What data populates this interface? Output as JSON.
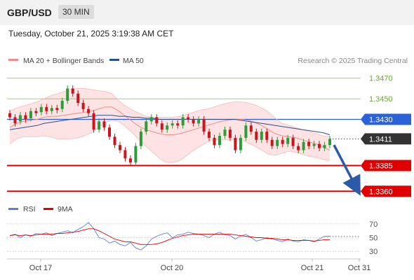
{
  "header": {
    "symbol": "GBP/USD",
    "timeframe": "30 MIN"
  },
  "timestamp": "Tuesday, October 21, 2025 3:19:38 AM CET",
  "legend": [
    {
      "name": "MA 20 + Bollinger Bands",
      "color": "#f28b8b"
    },
    {
      "name": "MA 50",
      "color": "#2b4f8f"
    }
  ],
  "credit": "Research © 2025 Trading Central",
  "rsi_legend": [
    {
      "name": "RSI",
      "color": "#5b7fd6"
    },
    {
      "name": "9MA",
      "color": "#e00000"
    }
  ],
  "chart_data": [
    {
      "type": "candlestick",
      "ylim": [
        1.3352,
        1.3478
      ],
      "x_ticks": [
        "Oct 17",
        "Oct 20",
        "Oct 21",
        "Oct 31"
      ],
      "levels": [
        {
          "value": 1.347,
          "label": "1.3470",
          "kind": "target",
          "color": "#6aa832"
        },
        {
          "value": 1.345,
          "label": "1.3450",
          "kind": "target",
          "color": "#6aa832"
        },
        {
          "value": 1.343,
          "label": "1.3430",
          "kind": "pivot",
          "color": "#2a62d9"
        },
        {
          "value": 1.3411,
          "label": "1.3411",
          "kind": "last",
          "color": "#333333"
        },
        {
          "value": 1.3385,
          "label": "1.3385",
          "kind": "support",
          "color": "#e00000"
        },
        {
          "value": 1.336,
          "label": "1.3360",
          "kind": "support",
          "color": "#e00000"
        }
      ],
      "forecast": {
        "from": 1.3405,
        "to": 1.3362,
        "color": "#2b5aa8"
      },
      "ma20": [
        1.3422,
        1.3426,
        1.3428,
        1.3429,
        1.343,
        1.3432,
        1.3433,
        1.3433,
        1.3434,
        1.3435,
        1.3436,
        1.3437,
        1.3438,
        1.344,
        1.3442,
        1.3442,
        1.3438,
        1.3433,
        1.3428,
        1.3423,
        1.342,
        1.3418,
        1.3416,
        1.3415,
        1.3415,
        1.3416,
        1.3418,
        1.342,
        1.3422,
        1.3424,
        1.3426,
        1.3428,
        1.3429,
        1.343,
        1.343,
        1.3429,
        1.3427,
        1.3424,
        1.342,
        1.3416,
        1.3414,
        1.3413,
        1.3412,
        1.341,
        1.3408,
        1.3406,
        1.3403,
        1.34
      ],
      "bb_upper": [
        1.3438,
        1.3441,
        1.3443,
        1.3445,
        1.3447,
        1.345,
        1.3453,
        1.3455,
        1.3457,
        1.3459,
        1.346,
        1.346,
        1.3459,
        1.3458,
        1.3457,
        1.3455,
        1.3448,
        1.3443,
        1.3439,
        1.3436,
        1.3433,
        1.3432,
        1.3432,
        1.3432,
        1.3432,
        1.3433,
        1.3435,
        1.3437,
        1.3439,
        1.344,
        1.3442,
        1.3444,
        1.3446,
        1.3447,
        1.3447,
        1.3446,
        1.3444,
        1.3441,
        1.3437,
        1.3431,
        1.3426,
        1.3424,
        1.3422,
        1.342,
        1.3418,
        1.3416,
        1.3414,
        1.3413
      ],
      "bb_lower": [
        1.3406,
        1.3411,
        1.3413,
        1.3413,
        1.3413,
        1.3414,
        1.3413,
        1.3411,
        1.3411,
        1.3411,
        1.3412,
        1.3414,
        1.3417,
        1.3422,
        1.3427,
        1.3429,
        1.3428,
        1.3423,
        1.3417,
        1.341,
        1.3404,
        1.3398,
        1.3392,
        1.3388,
        1.3388,
        1.339,
        1.3395,
        1.34,
        1.3404,
        1.3408,
        1.341,
        1.341,
        1.341,
        1.341,
        1.341,
        1.3407,
        1.3404,
        1.34,
        1.3396,
        1.3395,
        1.3397,
        1.3399,
        1.3398,
        1.3396,
        1.3394,
        1.3393,
        1.3391,
        1.339
      ],
      "ma50": [
        1.342,
        1.3421,
        1.3422,
        1.3423,
        1.3424,
        1.3426,
        1.3427,
        1.3428,
        1.3429,
        1.343,
        1.3431,
        1.3432,
        1.3433,
        1.3434,
        1.3434,
        1.3434,
        1.3433,
        1.3433,
        1.3432,
        1.3432,
        1.3431,
        1.3431,
        1.343,
        1.343,
        1.343,
        1.343,
        1.343,
        1.343,
        1.343,
        1.343,
        1.343,
        1.343,
        1.343,
        1.343,
        1.3429,
        1.3428,
        1.3427,
        1.3426,
        1.3425,
        1.3424,
        1.3423,
        1.3422,
        1.3421,
        1.342,
        1.3419,
        1.3418,
        1.3417,
        1.3415
      ],
      "candles": [
        [
          1.3436,
          1.3432
        ],
        [
          1.3432,
          1.3426
        ],
        [
          1.3428,
          1.3434
        ],
        [
          1.3434,
          1.343
        ],
        [
          1.3431,
          1.3438
        ],
        [
          1.3438,
          1.3436
        ],
        [
          1.3437,
          1.3442
        ],
        [
          1.3442,
          1.3438
        ],
        [
          1.3438,
          1.3441
        ],
        [
          1.3441,
          1.3439
        ],
        [
          1.344,
          1.3448
        ],
        [
          1.3448,
          1.346
        ],
        [
          1.346,
          1.3455
        ],
        [
          1.3455,
          1.3446
        ],
        [
          1.3446,
          1.344
        ],
        [
          1.344,
          1.3436
        ],
        [
          1.3436,
          1.342
        ],
        [
          1.342,
          1.3428
        ],
        [
          1.3428,
          1.3422
        ],
        [
          1.3422,
          1.3413
        ],
        [
          1.3413,
          1.3405
        ],
        [
          1.3405,
          1.34
        ],
        [
          1.34,
          1.3392
        ],
        [
          1.3392,
          1.3388
        ],
        [
          1.3388,
          1.3404
        ],
        [
          1.3404,
          1.3418
        ],
        [
          1.3418,
          1.3428
        ],
        [
          1.3428,
          1.3432
        ],
        [
          1.3432,
          1.3426
        ],
        [
          1.3426,
          1.342
        ],
        [
          1.342,
          1.3424
        ],
        [
          1.3424,
          1.3426
        ],
        [
          1.3426,
          1.3424
        ],
        [
          1.3424,
          1.3432
        ],
        [
          1.3432,
          1.343
        ],
        [
          1.343,
          1.3426
        ],
        [
          1.3426,
          1.343
        ],
        [
          1.343,
          1.3418
        ],
        [
          1.3418,
          1.3412
        ],
        [
          1.3412,
          1.3405
        ],
        [
          1.3405,
          1.3414
        ],
        [
          1.3414,
          1.342
        ],
        [
          1.342,
          1.3412
        ],
        [
          1.3412,
          1.34
        ],
        [
          1.34,
          1.3412
        ],
        [
          1.3412,
          1.3424
        ],
        [
          1.3424,
          1.3418
        ],
        [
          1.3418,
          1.341
        ],
        [
          1.341,
          1.3418
        ],
        [
          1.3418,
          1.341
        ],
        [
          1.341,
          1.3404
        ],
        [
          1.3404,
          1.341
        ],
        [
          1.341,
          1.3406
        ],
        [
          1.3406,
          1.3412
        ],
        [
          1.3412,
          1.3404
        ],
        [
          1.3404,
          1.34
        ],
        [
          1.34,
          1.3408
        ],
        [
          1.3408,
          1.3404
        ],
        [
          1.3404,
          1.3406
        ],
        [
          1.3406,
          1.3402
        ],
        [
          1.3402,
          1.3405
        ],
        [
          1.3405,
          1.3411
        ]
      ]
    },
    {
      "type": "line",
      "name": "RSI panel",
      "ylim": [
        25,
        75
      ],
      "y_ticks": [
        70,
        50,
        30
      ],
      "rsi": [
        53,
        55,
        50,
        54,
        52,
        56,
        55,
        57,
        53,
        56,
        58,
        60,
        57,
        62,
        66,
        72,
        63,
        50,
        48,
        42,
        45,
        40,
        38,
        43,
        35,
        32,
        38,
        48,
        52,
        55,
        57,
        50,
        54,
        55,
        58,
        56,
        55,
        53,
        50,
        55,
        58,
        54,
        53,
        48,
        52,
        55,
        50,
        45,
        47,
        50,
        48,
        46,
        44,
        48,
        45,
        44,
        47,
        46,
        44,
        48,
        52,
        52
      ],
      "ma9": [
        53,
        54,
        53,
        54,
        53,
        54,
        55,
        55,
        55,
        56,
        56,
        57,
        58,
        59,
        61,
        63,
        63,
        60,
        56,
        52,
        48,
        46,
        44,
        44,
        42,
        40,
        40,
        40,
        41,
        43,
        46,
        49,
        51,
        53,
        54,
        55,
        55,
        55,
        55,
        55,
        55,
        55,
        55,
        54,
        53,
        52,
        51,
        50,
        50,
        49,
        49,
        48,
        47,
        47,
        46,
        46,
        46,
        46,
        45,
        46,
        47,
        47
      ]
    }
  ]
}
